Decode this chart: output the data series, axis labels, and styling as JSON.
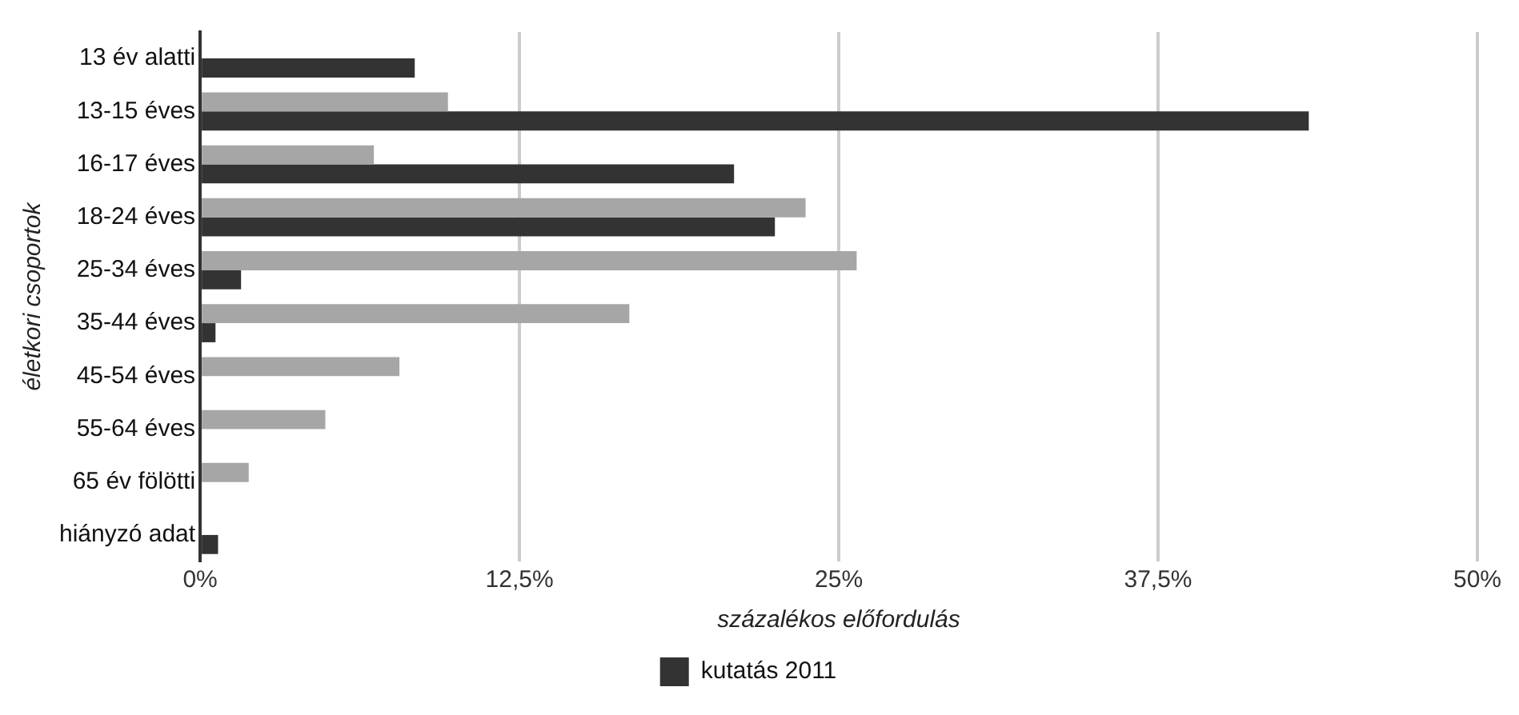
{
  "chart_data": {
    "type": "bar",
    "orientation": "horizontal",
    "xlabel": "százalékos előfordulás",
    "ylabel": "életkori csoportok",
    "categories": [
      "13 év alatti",
      "13-15 éves",
      "16-17 éves",
      "18-24 éves",
      "25-34 éves",
      "35-44 éves",
      "45-54 éves",
      "55-64 éves",
      "65 év fölötti",
      "hiányzó adat"
    ],
    "series": [
      {
        "color": "#a6a6a6",
        "values": [
          null,
          9.7,
          6.8,
          23.7,
          25.7,
          16.8,
          7.8,
          4.9,
          1.9,
          null
        ]
      },
      {
        "name": "kutatás 2011",
        "color": "#333333",
        "values": [
          8.4,
          43.4,
          20.9,
          22.5,
          1.6,
          0.6,
          null,
          null,
          null,
          0.7
        ]
      }
    ],
    "xlim": [
      0,
      50
    ],
    "xticks": [
      {
        "value": 0,
        "label": "0%"
      },
      {
        "value": 12.5,
        "label": "12,5%"
      },
      {
        "value": 25,
        "label": "25%"
      },
      {
        "value": 37.5,
        "label": "37,5%"
      },
      {
        "value": 50,
        "label": "50%"
      }
    ],
    "grid": "x",
    "legend": "bottom"
  }
}
